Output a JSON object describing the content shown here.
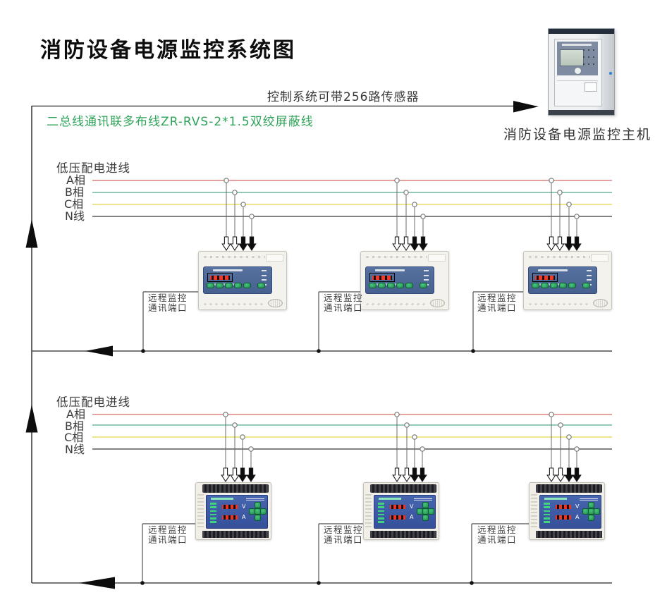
{
  "title": "消防设备电源监控系统图",
  "notes": {
    "sensor_capacity": "控制系统可带256路传感器",
    "bus_wire": "二总线通讯联多布线ZR-RVS-2*1.5双绞屏蔽线"
  },
  "host": {
    "label": "消防设备电源监控主机"
  },
  "meter": {
    "volt": "V",
    "amp": "A"
  },
  "sections": [
    {
      "incoming_label": "低压配电进线",
      "phases": [
        "A相",
        "B相",
        "C相",
        "N线"
      ],
      "ports": [
        {
          "line1": "远程监控",
          "line2": "通讯端口"
        },
        {
          "line1": "远程监控",
          "line2": "通讯端口"
        },
        {
          "line1": "远程监控",
          "line2": "通讯端口"
        }
      ]
    },
    {
      "incoming_label": "低压配电进线",
      "phases": [
        "A相",
        "B相",
        "C相",
        "N线"
      ],
      "ports": [
        {
          "line1": "远程监控",
          "line2": "通讯端口"
        },
        {
          "line1": "远程监控",
          "line2": "通讯端口"
        },
        {
          "line1": "远程监控",
          "line2": "通讯端口"
        }
      ]
    }
  ],
  "colors": {
    "phase_a": "#dd8480",
    "phase_b": "#6fb7a1",
    "phase_c": "#efe58d",
    "neutral": "#58585b",
    "bus_wire_note": "#2fa35a",
    "line": "#4a4a4a",
    "arrow": "#0d0d0d",
    "device_panel": "#4b6699",
    "display_red": "#f03a22",
    "button_green": "#2fae66"
  }
}
